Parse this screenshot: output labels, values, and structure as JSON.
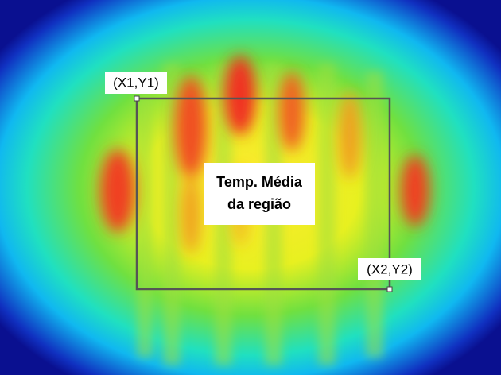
{
  "labels": {
    "top_left": "(X1,Y1)",
    "bottom_right": "(X2,Y2)",
    "region": [
      "Temp. Média",
      "da região"
    ]
  }
}
